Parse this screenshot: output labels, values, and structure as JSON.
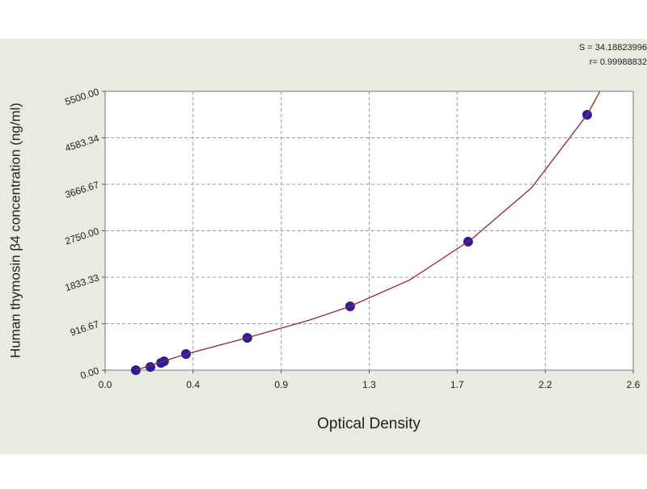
{
  "chart_data": {
    "type": "scatter",
    "xlabel": "Optical Density",
    "ylabel": "Human thymosin β4 concentration (ng/ml)",
    "annotations": [
      "S = 34.18823996",
      "r= 0.99988832"
    ],
    "xlim": [
      0,
      2.6
    ],
    "ylim": [
      0,
      5500
    ],
    "xticks": [
      {
        "value": 0,
        "label": "0.0"
      },
      {
        "value": 0.433,
        "label": "0.4"
      },
      {
        "value": 0.867,
        "label": "0.9"
      },
      {
        "value": 1.3,
        "label": "1.3"
      },
      {
        "value": 1.733,
        "label": "1.7"
      },
      {
        "value": 2.167,
        "label": "2.2"
      },
      {
        "value": 2.6,
        "label": "2.6"
      }
    ],
    "yticks": [
      {
        "value": 0,
        "label": "0.00"
      },
      {
        "value": 916.67,
        "label": "916.67"
      },
      {
        "value": 1833.33,
        "label": "1833.33"
      },
      {
        "value": 2750,
        "label": "2750.00"
      },
      {
        "value": 3666.67,
        "label": "3666.67"
      },
      {
        "value": 4583.34,
        "label": "4583.34"
      },
      {
        "value": 5500,
        "label": "5500.00"
      }
    ],
    "grid": true,
    "series": [
      {
        "kind": "points",
        "color": "#2b1d9e",
        "x": [
          0.151,
          0.223,
          0.275,
          0.29,
          0.398,
          0.7,
          1.206,
          1.787,
          2.373
        ],
        "values": [
          0,
          64,
          143,
          175,
          319,
          638,
          1259,
          2535,
          5038
        ]
      },
      {
        "kind": "curve",
        "color": "#8b2a2a",
        "x": [
          0.15,
          0.4,
          0.7,
          1.0,
          1.2,
          1.5,
          1.8,
          2.1,
          2.373,
          2.436
        ],
        "values": [
          0,
          320,
          640,
          980,
          1250,
          1780,
          2570,
          3600,
          5038,
          5500
        ]
      }
    ]
  }
}
